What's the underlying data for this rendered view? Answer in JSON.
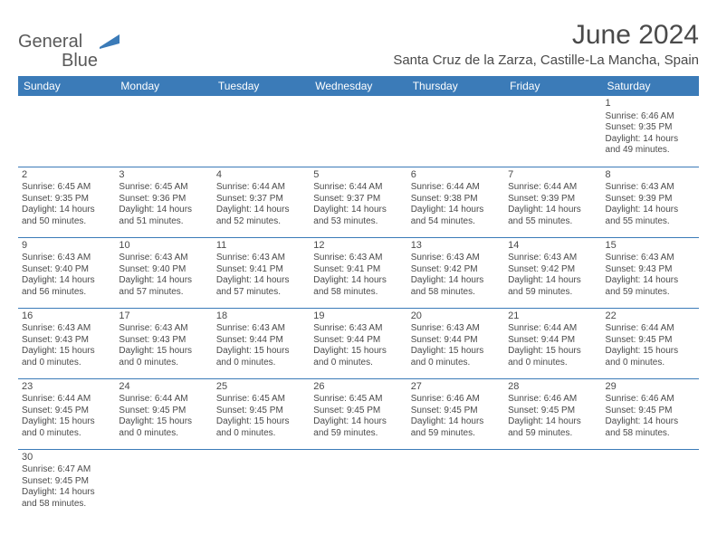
{
  "logo": {
    "text1": "General",
    "text2": "Blue"
  },
  "title": "June 2024",
  "location": "Santa Cruz de la Zarza, Castille-La Mancha, Spain",
  "colors": {
    "header_bg": "#3b7bb8",
    "header_text": "#ffffff",
    "text": "#4a4a4a",
    "border": "#3b7bb8",
    "background": "#ffffff"
  },
  "dayHeaders": [
    "Sunday",
    "Monday",
    "Tuesday",
    "Wednesday",
    "Thursday",
    "Friday",
    "Saturday"
  ],
  "weeks": [
    [
      null,
      null,
      null,
      null,
      null,
      null,
      {
        "n": "1",
        "sr": "6:46 AM",
        "ss": "9:35 PM",
        "dl": "14 hours and 49 minutes."
      }
    ],
    [
      {
        "n": "2",
        "sr": "6:45 AM",
        "ss": "9:35 PM",
        "dl": "14 hours and 50 minutes."
      },
      {
        "n": "3",
        "sr": "6:45 AM",
        "ss": "9:36 PM",
        "dl": "14 hours and 51 minutes."
      },
      {
        "n": "4",
        "sr": "6:44 AM",
        "ss": "9:37 PM",
        "dl": "14 hours and 52 minutes."
      },
      {
        "n": "5",
        "sr": "6:44 AM",
        "ss": "9:37 PM",
        "dl": "14 hours and 53 minutes."
      },
      {
        "n": "6",
        "sr": "6:44 AM",
        "ss": "9:38 PM",
        "dl": "14 hours and 54 minutes."
      },
      {
        "n": "7",
        "sr": "6:44 AM",
        "ss": "9:39 PM",
        "dl": "14 hours and 55 minutes."
      },
      {
        "n": "8",
        "sr": "6:43 AM",
        "ss": "9:39 PM",
        "dl": "14 hours and 55 minutes."
      }
    ],
    [
      {
        "n": "9",
        "sr": "6:43 AM",
        "ss": "9:40 PM",
        "dl": "14 hours and 56 minutes."
      },
      {
        "n": "10",
        "sr": "6:43 AM",
        "ss": "9:40 PM",
        "dl": "14 hours and 57 minutes."
      },
      {
        "n": "11",
        "sr": "6:43 AM",
        "ss": "9:41 PM",
        "dl": "14 hours and 57 minutes."
      },
      {
        "n": "12",
        "sr": "6:43 AM",
        "ss": "9:41 PM",
        "dl": "14 hours and 58 minutes."
      },
      {
        "n": "13",
        "sr": "6:43 AM",
        "ss": "9:42 PM",
        "dl": "14 hours and 58 minutes."
      },
      {
        "n": "14",
        "sr": "6:43 AM",
        "ss": "9:42 PM",
        "dl": "14 hours and 59 minutes."
      },
      {
        "n": "15",
        "sr": "6:43 AM",
        "ss": "9:43 PM",
        "dl": "14 hours and 59 minutes."
      }
    ],
    [
      {
        "n": "16",
        "sr": "6:43 AM",
        "ss": "9:43 PM",
        "dl": "15 hours and 0 minutes."
      },
      {
        "n": "17",
        "sr": "6:43 AM",
        "ss": "9:43 PM",
        "dl": "15 hours and 0 minutes."
      },
      {
        "n": "18",
        "sr": "6:43 AM",
        "ss": "9:44 PM",
        "dl": "15 hours and 0 minutes."
      },
      {
        "n": "19",
        "sr": "6:43 AM",
        "ss": "9:44 PM",
        "dl": "15 hours and 0 minutes."
      },
      {
        "n": "20",
        "sr": "6:43 AM",
        "ss": "9:44 PM",
        "dl": "15 hours and 0 minutes."
      },
      {
        "n": "21",
        "sr": "6:44 AM",
        "ss": "9:44 PM",
        "dl": "15 hours and 0 minutes."
      },
      {
        "n": "22",
        "sr": "6:44 AM",
        "ss": "9:45 PM",
        "dl": "15 hours and 0 minutes."
      }
    ],
    [
      {
        "n": "23",
        "sr": "6:44 AM",
        "ss": "9:45 PM",
        "dl": "15 hours and 0 minutes."
      },
      {
        "n": "24",
        "sr": "6:44 AM",
        "ss": "9:45 PM",
        "dl": "15 hours and 0 minutes."
      },
      {
        "n": "25",
        "sr": "6:45 AM",
        "ss": "9:45 PM",
        "dl": "15 hours and 0 minutes."
      },
      {
        "n": "26",
        "sr": "6:45 AM",
        "ss": "9:45 PM",
        "dl": "14 hours and 59 minutes."
      },
      {
        "n": "27",
        "sr": "6:46 AM",
        "ss": "9:45 PM",
        "dl": "14 hours and 59 minutes."
      },
      {
        "n": "28",
        "sr": "6:46 AM",
        "ss": "9:45 PM",
        "dl": "14 hours and 59 minutes."
      },
      {
        "n": "29",
        "sr": "6:46 AM",
        "ss": "9:45 PM",
        "dl": "14 hours and 58 minutes."
      }
    ],
    [
      {
        "n": "30",
        "sr": "6:47 AM",
        "ss": "9:45 PM",
        "dl": "14 hours and 58 minutes."
      },
      null,
      null,
      null,
      null,
      null,
      null
    ]
  ],
  "labels": {
    "sunrise": "Sunrise:",
    "sunset": "Sunset:",
    "daylight": "Daylight:"
  }
}
